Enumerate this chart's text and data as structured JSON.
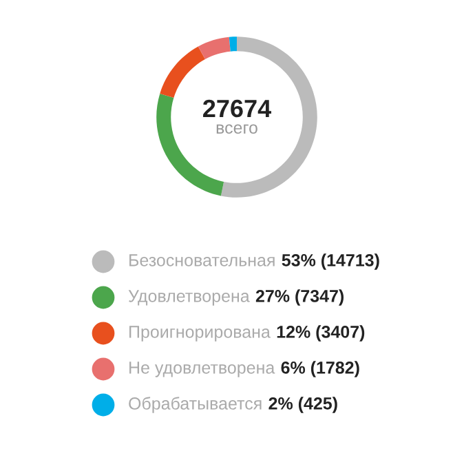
{
  "chart_data": {
    "type": "donut",
    "categories": [
      "Безосновательная",
      "Удовлетворена",
      "Проигнорирована",
      "Не удовлетворена",
      "Обрабатывается"
    ],
    "values": [
      14713,
      7347,
      3407,
      1782,
      425
    ],
    "colors": [
      "#bbbbbb",
      "#4ca64c",
      "#e8501e",
      "#e8706e",
      "#00aee8"
    ],
    "value_labels": [
      "53% (14713)",
      "27% (7347)",
      "12% (3407)",
      "6% (1782)",
      "2% (425)"
    ],
    "annotations": [
      "27674",
      "всего"
    ],
    "legend": "bottom"
  }
}
